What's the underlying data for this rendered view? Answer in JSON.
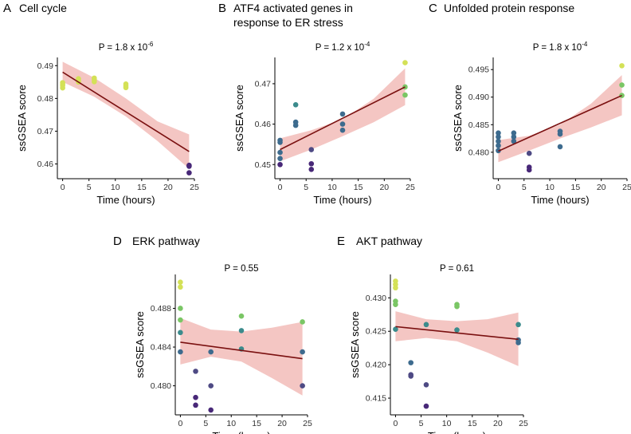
{
  "chart_data": [
    {
      "type": "scatter",
      "panel_letter": "A",
      "title_lines": [
        "Cell cycle"
      ],
      "pvalue": {
        "base": "P = 1.8 x 10",
        "exp": "-6"
      },
      "xlabel": "Time (hours)",
      "ylabel": "ssGSEA score",
      "xlim": [
        -1,
        25
      ],
      "ylim": [
        0.4555,
        0.4925
      ],
      "xticks": [
        0,
        5,
        10,
        15,
        20,
        25
      ],
      "yticks": [
        0.46,
        0.47,
        0.48,
        0.49
      ],
      "ytick_labels": [
        "0.46",
        "0.47",
        "0.48",
        "0.49"
      ],
      "points": [
        {
          "x": 0,
          "y": 0.4843,
          "color": "#d4e157"
        },
        {
          "x": 0,
          "y": 0.4848,
          "color": "#d4e157"
        },
        {
          "x": 0,
          "y": 0.4839,
          "color": "#d4e157"
        },
        {
          "x": 0,
          "y": 0.4832,
          "color": "#d4e157"
        },
        {
          "x": 3,
          "y": 0.486,
          "color": "#d4e157"
        },
        {
          "x": 3,
          "y": 0.4854,
          "color": "#d4e157"
        },
        {
          "x": 3,
          "y": 0.485,
          "color": "#d4e157"
        },
        {
          "x": 6,
          "y": 0.4862,
          "color": "#d4e157"
        },
        {
          "x": 6,
          "y": 0.4857,
          "color": "#d4e157"
        },
        {
          "x": 6,
          "y": 0.4851,
          "color": "#d4e157"
        },
        {
          "x": 12,
          "y": 0.4844,
          "color": "#d4e157"
        },
        {
          "x": 12,
          "y": 0.4838,
          "color": "#d4e157"
        },
        {
          "x": 12,
          "y": 0.4833,
          "color": "#d4e157"
        },
        {
          "x": 24,
          "y": 0.4596,
          "color": "#482878"
        },
        {
          "x": 24,
          "y": 0.4593,
          "color": "#482878"
        },
        {
          "x": 24,
          "y": 0.4573,
          "color": "#482878"
        }
      ],
      "fit": {
        "x": [
          0,
          24
        ],
        "y": [
          0.488,
          0.4638
        ]
      },
      "ci": {
        "x": [
          0,
          6,
          12,
          18,
          24
        ],
        "lower": [
          0.485,
          0.4805,
          0.4745,
          0.467,
          0.4585
        ],
        "upper": [
          0.4912,
          0.4863,
          0.48,
          0.473,
          0.469
        ]
      }
    },
    {
      "type": "scatter",
      "panel_letter": "B",
      "title_lines": [
        "ATF4 activated genes in",
        "response to ER stress"
      ],
      "pvalue": {
        "base": "P = 1.2 x 10",
        "exp": "-4"
      },
      "xlabel": "Time (hours)",
      "ylabel": "ssGSEA score",
      "xlim": [
        -1,
        25
      ],
      "ylim": [
        0.4465,
        0.4765
      ],
      "xticks": [
        0,
        5,
        10,
        15,
        20,
        25
      ],
      "yticks": [
        0.45,
        0.46,
        0.47
      ],
      "ytick_labels": [
        "0.45",
        "0.46",
        "0.47"
      ],
      "points": [
        {
          "x": 0,
          "y": 0.456,
          "color": "#3d6b8e"
        },
        {
          "x": 0,
          "y": 0.4555,
          "color": "#3d6b8e"
        },
        {
          "x": 0,
          "y": 0.453,
          "color": "#3d6b8e"
        },
        {
          "x": 0,
          "y": 0.4515,
          "color": "#3d6b8e"
        },
        {
          "x": 0,
          "y": 0.45,
          "color": "#482878"
        },
        {
          "x": 3,
          "y": 0.4648,
          "color": "#3b8b8c"
        },
        {
          "x": 3,
          "y": 0.4605,
          "color": "#3d6b8e"
        },
        {
          "x": 3,
          "y": 0.4597,
          "color": "#3d6b8e"
        },
        {
          "x": 6,
          "y": 0.4537,
          "color": "#4e4a84"
        },
        {
          "x": 6,
          "y": 0.4502,
          "color": "#482878"
        },
        {
          "x": 6,
          "y": 0.4488,
          "color": "#482878"
        },
        {
          "x": 12,
          "y": 0.4625,
          "color": "#3d6b8e"
        },
        {
          "x": 12,
          "y": 0.46,
          "color": "#3d6b8e"
        },
        {
          "x": 12,
          "y": 0.4585,
          "color": "#3d6b8e"
        },
        {
          "x": 24,
          "y": 0.4752,
          "color": "#d4e157"
        },
        {
          "x": 24,
          "y": 0.4692,
          "color": "#7ac665"
        },
        {
          "x": 24,
          "y": 0.4672,
          "color": "#7ac665"
        }
      ],
      "fit": {
        "x": [
          0,
          24
        ],
        "y": [
          0.4537,
          0.4692
        ]
      },
      "ci": {
        "x": [
          0,
          6,
          12,
          18,
          24
        ],
        "lower": [
          0.4508,
          0.4537,
          0.457,
          0.4605,
          0.4647
        ],
        "upper": [
          0.4565,
          0.4585,
          0.4612,
          0.4663,
          0.4738
        ]
      }
    },
    {
      "type": "scatter",
      "panel_letter": "C",
      "title_lines": [
        "Unfolded protein response"
      ],
      "pvalue": {
        "base": "P = 1.8 x 10",
        "exp": "-4"
      },
      "xlabel": "Time (hours)",
      "ylabel": "ssGSEA score",
      "xlim": [
        -1,
        25
      ],
      "ylim": [
        0.4752,
        0.4972
      ],
      "xticks": [
        0,
        5,
        10,
        15,
        20,
        25
      ],
      "yticks": [
        0.48,
        0.485,
        0.49,
        0.495
      ],
      "ytick_labels": [
        "0.480",
        "0.485",
        "0.490",
        "0.495"
      ],
      "points": [
        {
          "x": 0,
          "y": 0.4835,
          "color": "#3d6b8e"
        },
        {
          "x": 0,
          "y": 0.4828,
          "color": "#3d6b8e"
        },
        {
          "x": 0,
          "y": 0.482,
          "color": "#3d6b8e"
        },
        {
          "x": 0,
          "y": 0.4812,
          "color": "#3d6b8e"
        },
        {
          "x": 0,
          "y": 0.4803,
          "color": "#3d6b8e"
        },
        {
          "x": 3,
          "y": 0.4835,
          "color": "#3d6b8e"
        },
        {
          "x": 3,
          "y": 0.4828,
          "color": "#3d6b8e"
        },
        {
          "x": 3,
          "y": 0.482,
          "color": "#3d6b8e"
        },
        {
          "x": 6,
          "y": 0.4798,
          "color": "#4e4a84"
        },
        {
          "x": 6,
          "y": 0.4773,
          "color": "#482878"
        },
        {
          "x": 6,
          "y": 0.4768,
          "color": "#482878"
        },
        {
          "x": 12,
          "y": 0.4838,
          "color": "#3d6b8e"
        },
        {
          "x": 12,
          "y": 0.4833,
          "color": "#3d6b8e"
        },
        {
          "x": 12,
          "y": 0.481,
          "color": "#3d6b8e"
        },
        {
          "x": 24,
          "y": 0.4957,
          "color": "#d4e157"
        },
        {
          "x": 24,
          "y": 0.4922,
          "color": "#7ac665"
        },
        {
          "x": 24,
          "y": 0.4903,
          "color": "#7ac665"
        }
      ],
      "fit": {
        "x": [
          0,
          24
        ],
        "y": [
          0.4802,
          0.4903
        ]
      },
      "ci": {
        "x": [
          0,
          6,
          12,
          18,
          24
        ],
        "lower": [
          0.4782,
          0.4803,
          0.4825,
          0.4845,
          0.4867
        ],
        "upper": [
          0.4822,
          0.483,
          0.485,
          0.4888,
          0.494
        ]
      }
    },
    {
      "type": "scatter",
      "panel_letter": "D",
      "title_lines": [
        "ERK pathway"
      ],
      "pvalue": {
        "base": "P = 0.55",
        "exp": ""
      },
      "xlabel": "Time (hours)",
      "ylabel": "ssGSEA score",
      "xlim": [
        -1,
        25
      ],
      "ylim": [
        0.477,
        0.4915
      ],
      "xticks": [
        0,
        5,
        10,
        15,
        20,
        25
      ],
      "yticks": [
        0.48,
        0.484,
        0.488
      ],
      "ytick_labels": [
        "0.480",
        "0.484",
        "0.488"
      ],
      "points": [
        {
          "x": 0,
          "y": 0.4907,
          "color": "#d4e157"
        },
        {
          "x": 0,
          "y": 0.4902,
          "color": "#d4e157"
        },
        {
          "x": 0,
          "y": 0.488,
          "color": "#7ac665"
        },
        {
          "x": 0,
          "y": 0.4868,
          "color": "#7ac665"
        },
        {
          "x": 0,
          "y": 0.4855,
          "color": "#3b8b8c"
        },
        {
          "x": 0,
          "y": 0.4835,
          "color": "#3d6b8e"
        },
        {
          "x": 3,
          "y": 0.4815,
          "color": "#4e4a84"
        },
        {
          "x": 3,
          "y": 0.4788,
          "color": "#482878"
        },
        {
          "x": 3,
          "y": 0.478,
          "color": "#482878"
        },
        {
          "x": 6,
          "y": 0.4835,
          "color": "#3d6b8e"
        },
        {
          "x": 6,
          "y": 0.48,
          "color": "#4e4a84"
        },
        {
          "x": 6,
          "y": 0.4775,
          "color": "#482878"
        },
        {
          "x": 12,
          "y": 0.4872,
          "color": "#7ac665"
        },
        {
          "x": 12,
          "y": 0.4857,
          "color": "#3b8b8c"
        },
        {
          "x": 12,
          "y": 0.4838,
          "color": "#3b8b8c"
        },
        {
          "x": 24,
          "y": 0.4866,
          "color": "#7ac665"
        },
        {
          "x": 24,
          "y": 0.4835,
          "color": "#3d6b8e"
        },
        {
          "x": 24,
          "y": 0.48,
          "color": "#4e4a84"
        }
      ],
      "fit": {
        "x": [
          0,
          24
        ],
        "y": [
          0.4845,
          0.4828
        ]
      },
      "ci": {
        "x": [
          0,
          6,
          12,
          18,
          24
        ],
        "lower": [
          0.4822,
          0.483,
          0.4825,
          0.4808,
          0.479
        ],
        "upper": [
          0.487,
          0.4858,
          0.4856,
          0.486,
          0.4866
        ]
      }
    },
    {
      "type": "scatter",
      "panel_letter": "E",
      "title_lines": [
        "AKT pathway"
      ],
      "pvalue": {
        "base": "P = 0.61",
        "exp": ""
      },
      "xlabel": "Time (hours)",
      "ylabel": "ssGSEA score",
      "xlim": [
        -1,
        25
      ],
      "ylim": [
        0.4125,
        0.4335
      ],
      "xticks": [
        0,
        5,
        10,
        15,
        20,
        25
      ],
      "yticks": [
        0.415,
        0.42,
        0.425,
        0.43
      ],
      "ytick_labels": [
        "0.415",
        "0.420",
        "0.425",
        "0.430"
      ],
      "points": [
        {
          "x": 0,
          "y": 0.4325,
          "color": "#d4e157"
        },
        {
          "x": 0,
          "y": 0.432,
          "color": "#d4e157"
        },
        {
          "x": 0,
          "y": 0.4315,
          "color": "#d4e157"
        },
        {
          "x": 0,
          "y": 0.4295,
          "color": "#7ac665"
        },
        {
          "x": 0,
          "y": 0.429,
          "color": "#7ac665"
        },
        {
          "x": 0,
          "y": 0.4253,
          "color": "#3b8b8c"
        },
        {
          "x": 3,
          "y": 0.4203,
          "color": "#3d6b8e"
        },
        {
          "x": 3,
          "y": 0.4185,
          "color": "#4e4a84"
        },
        {
          "x": 3,
          "y": 0.4183,
          "color": "#4e4a84"
        },
        {
          "x": 6,
          "y": 0.426,
          "color": "#3b8b8c"
        },
        {
          "x": 6,
          "y": 0.417,
          "color": "#4e4a84"
        },
        {
          "x": 6,
          "y": 0.4138,
          "color": "#482878"
        },
        {
          "x": 12,
          "y": 0.429,
          "color": "#7ac665"
        },
        {
          "x": 12,
          "y": 0.4287,
          "color": "#7ac665"
        },
        {
          "x": 12,
          "y": 0.4252,
          "color": "#3b8b8c"
        },
        {
          "x": 24,
          "y": 0.426,
          "color": "#3b8b8c"
        },
        {
          "x": 24,
          "y": 0.4237,
          "color": "#3d6b8e"
        },
        {
          "x": 24,
          "y": 0.4233,
          "color": "#3d6b8e"
        }
      ],
      "fit": {
        "x": [
          0,
          24
        ],
        "y": [
          0.4257,
          0.4238
        ]
      },
      "ci": {
        "x": [
          0,
          6,
          12,
          18,
          24
        ],
        "lower": [
          0.4235,
          0.424,
          0.4235,
          0.4218,
          0.4198
        ],
        "upper": [
          0.428,
          0.4268,
          0.4265,
          0.4268,
          0.4278
        ]
      }
    }
  ],
  "colors": {
    "fit_line": "#7a1010",
    "ci_band": "#f2bcb8",
    "axis": "#000000"
  }
}
